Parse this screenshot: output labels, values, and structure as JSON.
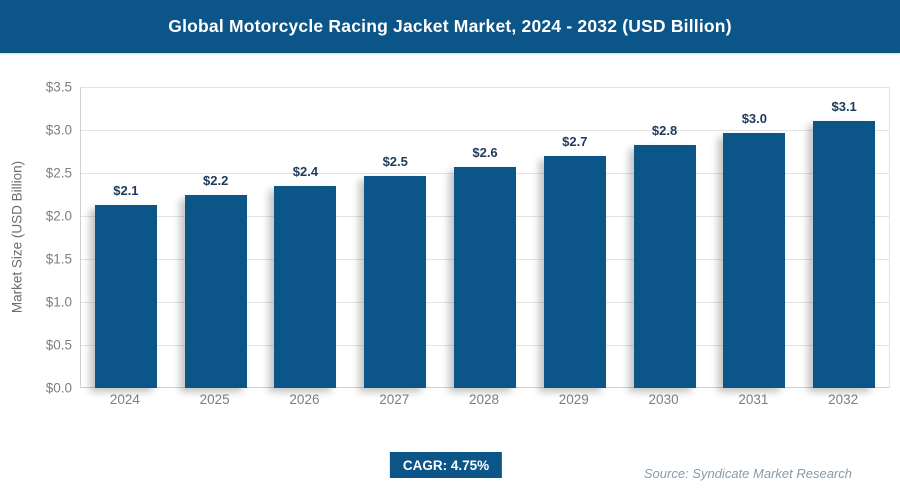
{
  "header": {
    "title": "Global Motorcycle Racing Jacket Market, 2024 - 2032 (USD Billion)"
  },
  "colors": {
    "header_bg": "#0c5588",
    "bar": "#0c5588",
    "badge_bg": "#0c5588",
    "value_label": "#1f3a5c",
    "tick_label": "#7f7f7f"
  },
  "chart_data": {
    "type": "bar",
    "title": "Global Motorcycle Racing Jacket Market, 2024 - 2032 (USD Billion)",
    "categories": [
      "2024",
      "2025",
      "2026",
      "2027",
      "2028",
      "2029",
      "2030",
      "2031",
      "2032"
    ],
    "values": [
      2.13,
      2.24,
      2.35,
      2.46,
      2.57,
      2.7,
      2.82,
      2.96,
      3.1
    ],
    "bar_labels": [
      "$2.1",
      "$2.2",
      "$2.4",
      "$2.5",
      "$2.6",
      "$2.7",
      "$2.8",
      "$3.0",
      "$3.1"
    ],
    "xlabel": "",
    "ylabel": "Market Size (USD Billion)",
    "yticks_top_to_bottom": [
      "$3.5",
      "$3.0",
      "$2.5",
      "$2.0",
      "$1.5",
      "$1.0",
      "$0.5",
      "$0.0"
    ],
    "ylim": [
      0,
      3.5
    ],
    "grid": true,
    "legend": "none"
  },
  "footer": {
    "cagr_label": "CAGR: 4.75%",
    "source": "Source: Syndicate Market Research"
  }
}
